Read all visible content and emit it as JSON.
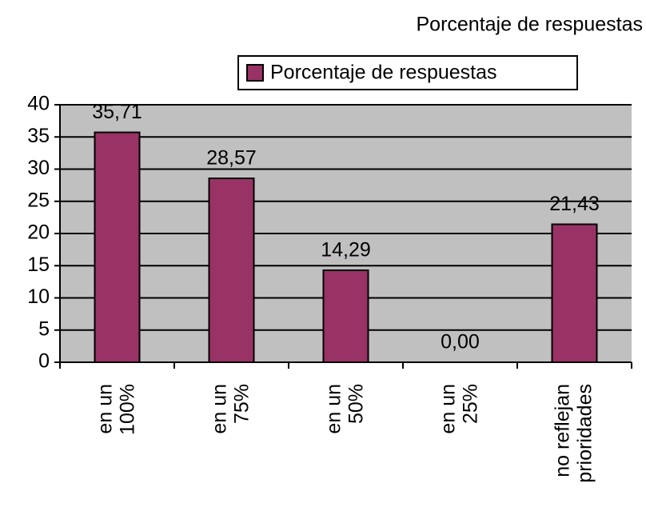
{
  "chart_data": {
    "type": "bar",
    "title": "Porcentaje de respuestas",
    "categories": [
      "en un 100%",
      "en un 75%",
      "en un 50%",
      "en un 25%",
      "no reflejan prioridades"
    ],
    "series": [
      {
        "name": "Porcentaje de respuestas",
        "color": "#993366",
        "values": [
          35.71,
          28.57,
          14.29,
          0,
          21.43
        ],
        "value_labels": [
          "35,71",
          "28,57",
          "14,29",
          "0,00",
          "21,43"
        ]
      }
    ],
    "ylim": [
      0,
      40
    ],
    "yticks": [
      0,
      5,
      10,
      15,
      20,
      25,
      30,
      35,
      40
    ],
    "grid": true,
    "plot_background": "#c0c0c0",
    "legend": "top"
  }
}
